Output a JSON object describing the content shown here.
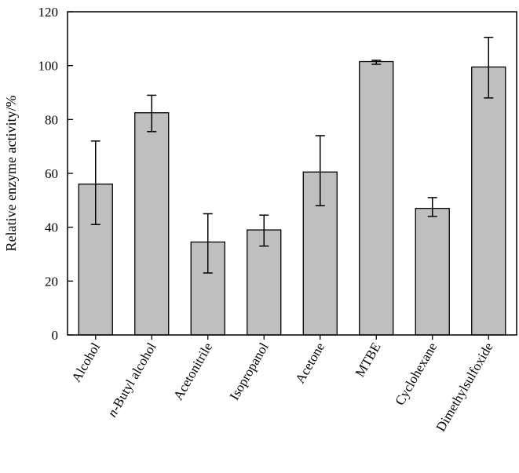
{
  "chart_data": {
    "type": "bar",
    "title": "",
    "xlabel": "",
    "ylabel": "Relative enzyme activity/%",
    "ylim": [
      0,
      120
    ],
    "yticks": [
      0,
      20,
      40,
      60,
      80,
      100,
      120
    ],
    "grid": false,
    "bar_color": "#bfbfbf",
    "categories": [
      {
        "prefix": "",
        "text": "Alcohol"
      },
      {
        "prefix": "n",
        "text": "-Butyl alcohol"
      },
      {
        "prefix": "",
        "text": "Acetonitrile"
      },
      {
        "prefix": "",
        "text": "Isopropanol"
      },
      {
        "prefix": "",
        "text": "Acetone"
      },
      {
        "prefix": "",
        "text": "MTBE"
      },
      {
        "prefix": "",
        "text": "Cyclohexane"
      },
      {
        "prefix": "",
        "text": "Dimethylsulfoxide"
      }
    ],
    "values": [
      56,
      82.5,
      34.5,
      39,
      60.5,
      101.5,
      47,
      99.5
    ],
    "error_low": [
      41,
      75.5,
      23,
      33,
      48,
      100.5,
      44,
      88
    ],
    "error_high": [
      72,
      89,
      45,
      44.5,
      74,
      102,
      51,
      110.5
    ]
  }
}
